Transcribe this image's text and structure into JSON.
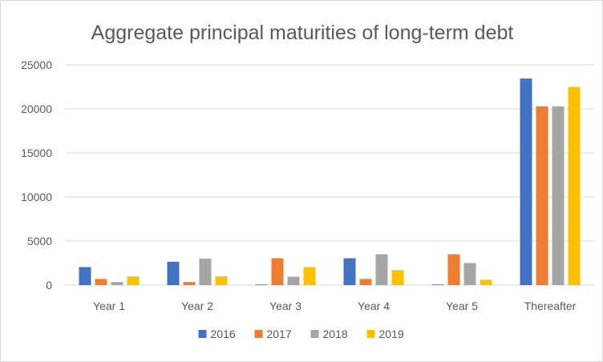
{
  "chart_data": {
    "type": "bar",
    "title": "Aggregate principal maturities of long-term debt",
    "xlabel": "",
    "ylabel": "",
    "categories": [
      "Year 1",
      "Year 2",
      "Year 3",
      "Year 4",
      "Year 5",
      "Thereafter"
    ],
    "series": [
      {
        "name": "2016",
        "color": "#4472C4",
        "values": [
          2050,
          2650,
          50,
          3050,
          50,
          23450
        ]
      },
      {
        "name": "2017",
        "color": "#ED7D31",
        "values": [
          700,
          350,
          3050,
          700,
          3500,
          20300
        ]
      },
      {
        "name": "2018",
        "color": "#A5A5A5",
        "values": [
          350,
          3000,
          950,
          3500,
          2500,
          20300
        ]
      },
      {
        "name": "2019",
        "color": "#FFC000",
        "values": [
          1000,
          1000,
          2050,
          1700,
          600,
          22500
        ]
      }
    ],
    "ylim": [
      0,
      25000
    ],
    "yticks": [
      "0",
      "5000",
      "10000",
      "15000",
      "20000",
      "25000"
    ],
    "grid": true,
    "legend_position": "bottom"
  }
}
